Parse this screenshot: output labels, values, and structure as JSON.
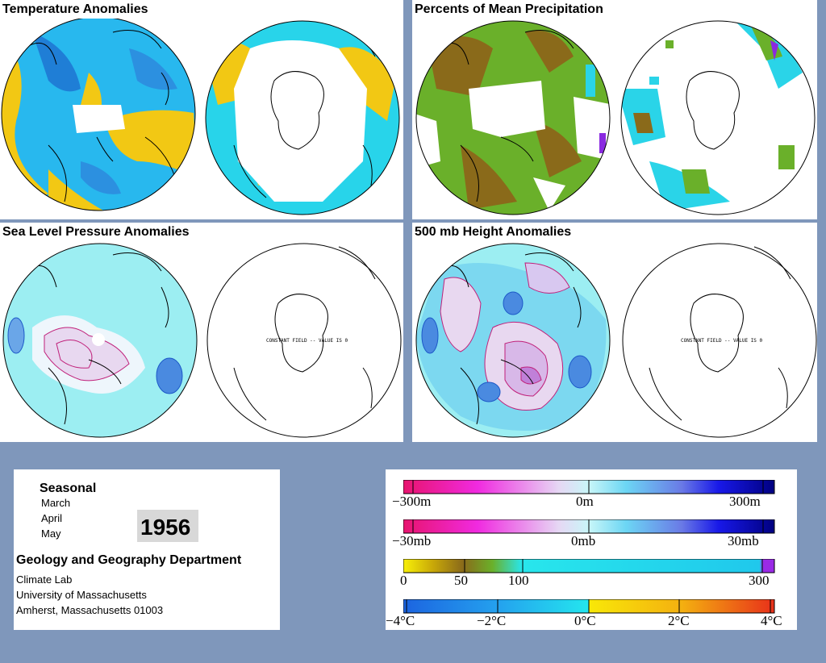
{
  "panels": {
    "temperature": {
      "title": "Temperature Anomalies"
    },
    "precipitation": {
      "title": "Percents of Mean Precipitation"
    },
    "pressure": {
      "title": "Sea Level Pressure Anomalies",
      "south_note": "CONSTANT FIELD -- VALUE IS 0"
    },
    "height": {
      "title": "500 mb Height Anomalies",
      "south_note": "CONSTANT FIELD -- VALUE IS 0"
    }
  },
  "info": {
    "period": "Seasonal",
    "months": [
      "March",
      "April",
      "May"
    ],
    "year": "1956",
    "department": "Geology and Geography Department",
    "lab": "Climate Lab",
    "university": "University of Massachusetts",
    "address": "Amherst, Massachusetts 01003"
  },
  "legend": {
    "height": {
      "left": "−300m",
      "mid": "0m",
      "right": "300m"
    },
    "pressure": {
      "left": "−30mb",
      "mid": "0mb",
      "right": "30mb"
    },
    "precip": {
      "t0": "0",
      "t50": "50",
      "t100": "100",
      "t300": "300"
    },
    "temp": {
      "m4": "−4°C",
      "m2": "−2°C",
      "z": "0°C",
      "p2": "2°C",
      "p4": "4°C"
    }
  },
  "colors": {
    "background": "#7f97bb",
    "anomaly_positive_temp": "#f2c814",
    "anomaly_negative_temp": "#25a6e8",
    "precip_dry": "#8a6a1a",
    "precip_green": "#6ab02a",
    "precip_wet": "#22e0e8",
    "pressure_low": "#1c58c8",
    "pressure_high": "#d01a70"
  }
}
